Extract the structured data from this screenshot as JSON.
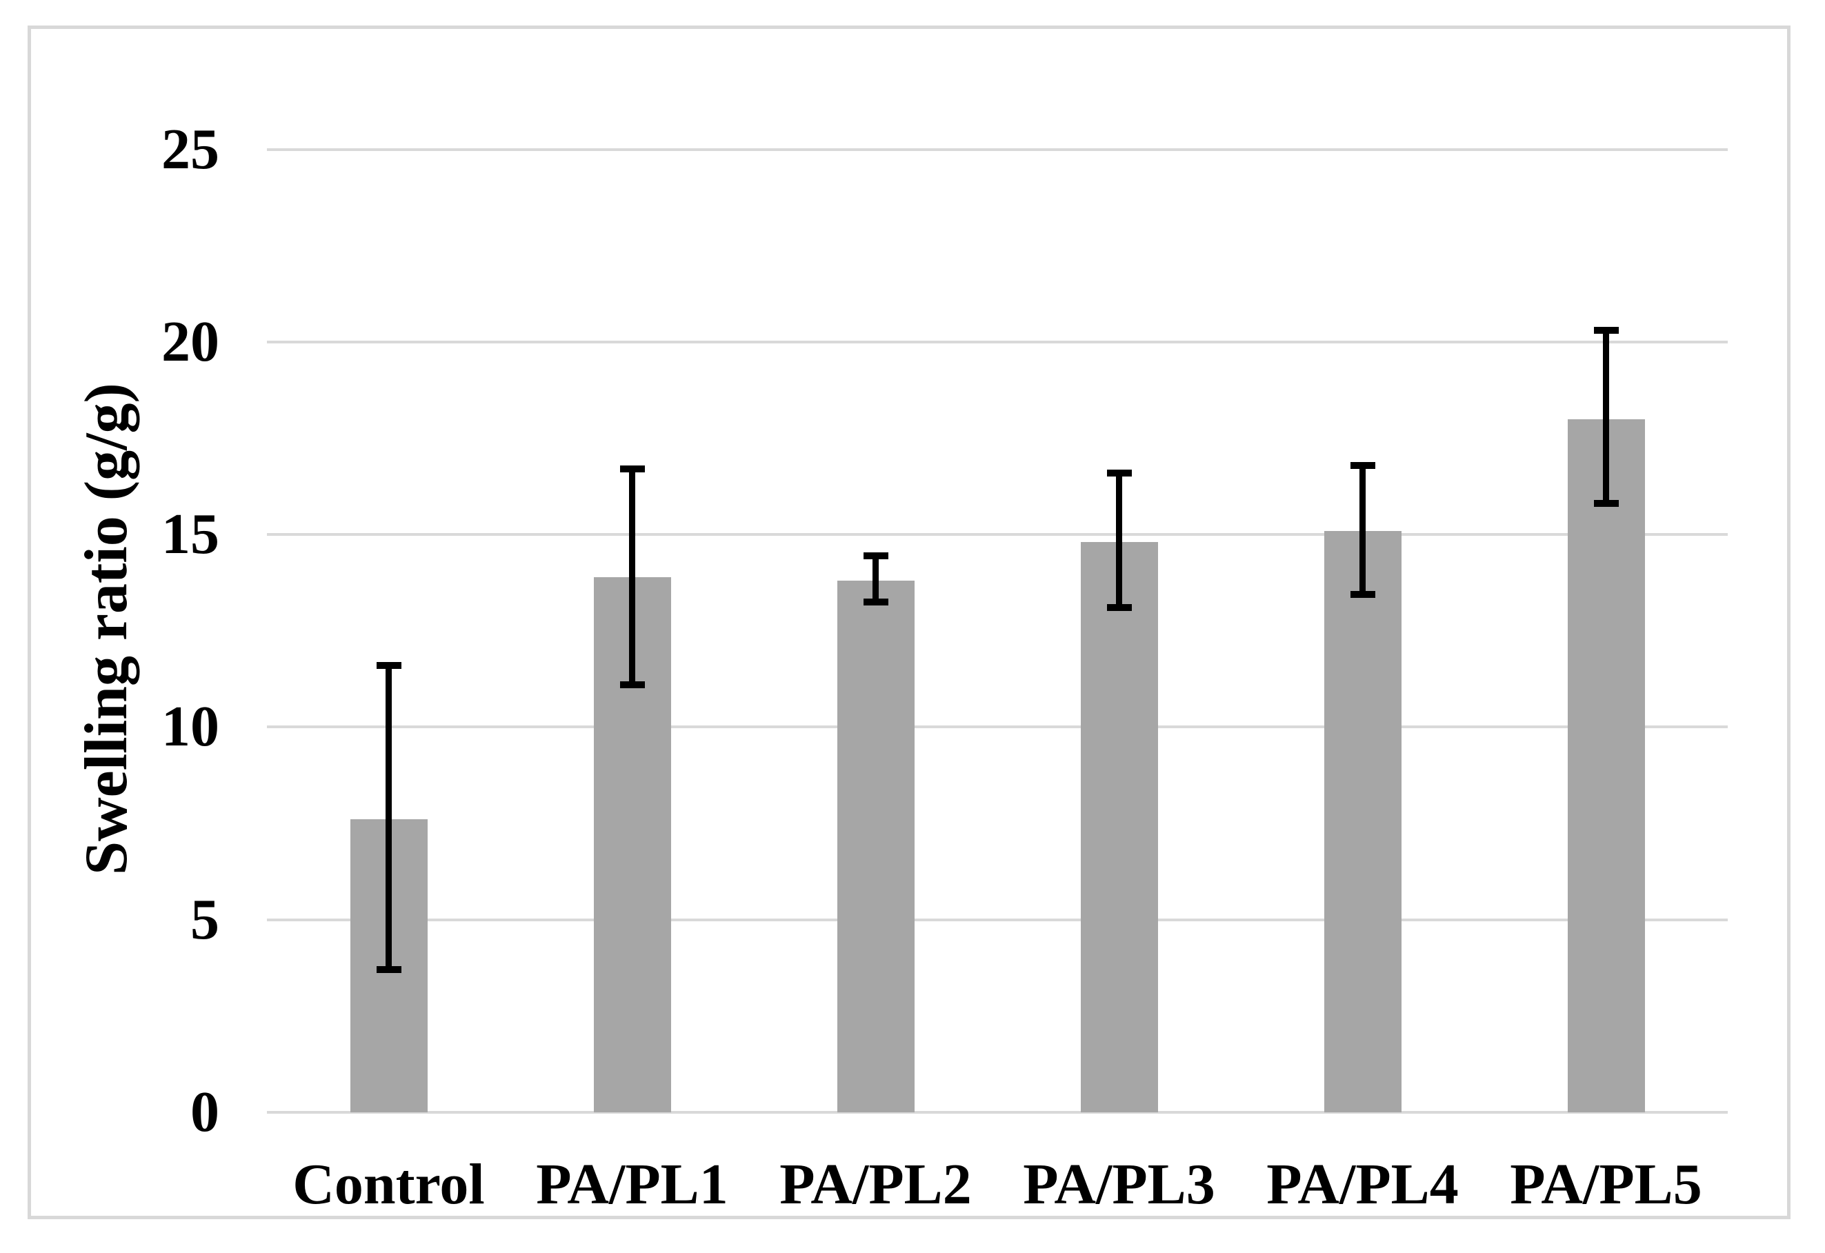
{
  "figure": {
    "background_color": "#ffffff",
    "frame_color": "#d8d8d8",
    "y_axis_title": "Swelling ratio (g/g)"
  },
  "chart_data": {
    "type": "bar",
    "title": "",
    "xlabel": "",
    "ylabel": "Swelling ratio (g/g)",
    "categories": [
      "Control",
      "PA/PL1",
      "PA/PL2",
      "PA/PL3",
      "PA/PL4",
      "PA/PL5"
    ],
    "values": [
      7.6,
      13.9,
      13.8,
      14.8,
      15.1,
      18.0
    ],
    "error_plus": [
      4.0,
      2.8,
      0.65,
      1.8,
      1.7,
      2.3
    ],
    "error_minus": [
      3.9,
      2.8,
      0.55,
      1.7,
      1.65,
      2.2
    ],
    "ylim": [
      0,
      25
    ],
    "yticks": [
      0,
      5,
      10,
      15,
      20,
      25
    ],
    "grid": true,
    "legend": false,
    "bar_color": "#a6a6a6",
    "gridline_color": "#d9d9d9",
    "error_bar_color": "#000000",
    "text_color": "#000000"
  }
}
